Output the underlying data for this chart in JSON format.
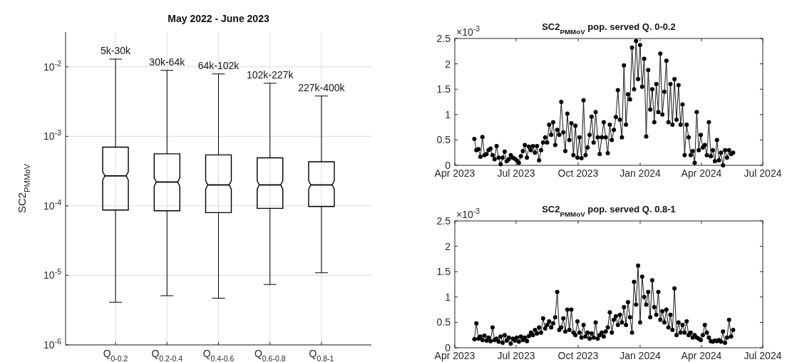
{
  "chart_data": [
    {
      "type": "box",
      "title": "May 2022 - June 2023",
      "ylabel": "SC2$_{PMMoV}$",
      "log": "y",
      "grid": true,
      "categories": [
        "Q$_{0-0.2}$",
        "Q$_{0.2-0.4}$",
        "Q$_{0.4-0.6}$",
        "Q$_{0.6-0.8}$",
        "Q$_{0.8-1}$"
      ],
      "boxes": [
        {
          "low": 4.1e-06,
          "q1": 8.7e-05,
          "median": 0.00027,
          "q3": 0.0007,
          "high": 0.0129
        },
        {
          "low": 5.1e-06,
          "q1": 8.5e-05,
          "median": 0.00022,
          "q3": 0.00056,
          "high": 0.0089
        },
        {
          "low": 4.7e-06,
          "q1": 8e-05,
          "median": 0.0002,
          "q3": 0.00054,
          "high": 0.0079
        },
        {
          "low": 7.4e-06,
          "q1": 9.2e-05,
          "median": 0.0002,
          "q3": 0.00049,
          "high": 0.0058
        },
        {
          "low": 1.09e-05,
          "q1": 9.8e-05,
          "median": 0.0002,
          "q3": 0.00043,
          "high": 0.0038
        }
      ],
      "color": "#000000",
      "ylim": [
        1e-06,
        0.0316
      ],
      "yticks": [
        {
          "value": 1e-06,
          "label": "10$^{-6}$"
        },
        {
          "value": 1e-05,
          "label": "10$^{-5}$"
        },
        {
          "value": 0.0001,
          "label": "10$^{-4}$"
        },
        {
          "value": 0.001,
          "label": "10$^{-3}$"
        },
        {
          "value": 0.01,
          "label": "10$^{-2}$"
        }
      ],
      "annotations": [
        "5k-30k",
        "30k-64k",
        "64k-102k",
        "102k-227k",
        "227k-400k"
      ]
    },
    {
      "type": "line",
      "title": "SC2$_{PMMoV}$ pop. served Q. 0-0.2",
      "marker": "circle",
      "line_style": "solid",
      "x": [
        "2023-04-30",
        "2023-05-03",
        "2023-05-06",
        "2023-05-09",
        "2023-05-12",
        "2023-05-15",
        "2023-05-18",
        "2023-05-21",
        "2023-05-24",
        "2023-05-27",
        "2023-05-30",
        "2023-06-02",
        "2023-06-05",
        "2023-06-08",
        "2023-06-11",
        "2023-06-14",
        "2023-06-17",
        "2023-06-20",
        "2023-06-23",
        "2023-06-26",
        "2023-06-29",
        "2023-07-02",
        "2023-07-05",
        "2023-07-08",
        "2023-07-11",
        "2023-07-14",
        "2023-07-17",
        "2023-07-20",
        "2023-07-23",
        "2023-07-26",
        "2023-07-29",
        "2023-08-01",
        "2023-08-04",
        "2023-08-07",
        "2023-08-10",
        "2023-08-13",
        "2023-08-16",
        "2023-08-19",
        "2023-08-22",
        "2023-08-25",
        "2023-08-28",
        "2023-08-31",
        "2023-09-03",
        "2023-09-06",
        "2023-09-09",
        "2023-09-12",
        "2023-09-15",
        "2023-09-18",
        "2023-09-21",
        "2023-09-24",
        "2023-09-27",
        "2023-09-30",
        "2023-10-03",
        "2023-10-06",
        "2023-10-09",
        "2023-10-12",
        "2023-10-15",
        "2023-10-18",
        "2023-10-21",
        "2023-10-24",
        "2023-10-27",
        "2023-10-30",
        "2023-11-02",
        "2023-11-05",
        "2023-11-08",
        "2023-11-11",
        "2023-11-14",
        "2023-11-17",
        "2023-11-20",
        "2023-11-23",
        "2023-11-26",
        "2023-11-29",
        "2023-12-02",
        "2023-12-05",
        "2023-12-08",
        "2023-12-11",
        "2023-12-14",
        "2023-12-17",
        "2023-12-20",
        "2023-12-23",
        "2023-12-26",
        "2023-12-29",
        "2024-01-01",
        "2024-01-04",
        "2024-01-07",
        "2024-01-10",
        "2024-01-13",
        "2024-01-16",
        "2024-01-19",
        "2024-01-22",
        "2024-01-25",
        "2024-01-28",
        "2024-01-31",
        "2024-02-03",
        "2024-02-06",
        "2024-02-09",
        "2024-02-12",
        "2024-02-15",
        "2024-02-18",
        "2024-02-21",
        "2024-02-24",
        "2024-02-27",
        "2024-03-01",
        "2024-03-04",
        "2024-03-07",
        "2024-03-10",
        "2024-03-13",
        "2024-03-16",
        "2024-03-19",
        "2024-03-22",
        "2024-03-25",
        "2024-03-28",
        "2024-03-31",
        "2024-04-03",
        "2024-04-06",
        "2024-04-09",
        "2024-04-12",
        "2024-04-15",
        "2024-04-18",
        "2024-04-21",
        "2024-04-24",
        "2024-04-27",
        "2024-04-30",
        "2024-05-03",
        "2024-05-06",
        "2024-05-09",
        "2024-05-12",
        "2024-05-15",
        "2024-05-18"
      ],
      "series": [
        {
          "color": "#000000",
          "values": [
            0.52,
            0.3,
            0.32,
            0.17,
            0.56,
            0.2,
            0.22,
            0.3,
            0.33,
            0.2,
            0.12,
            0.38,
            0.15,
            0.02,
            0.15,
            0.27,
            0.08,
            0.12,
            0.2,
            0.15,
            0.13,
            0.1,
            0.05,
            0.18,
            0.28,
            0.4,
            0.15,
            0.37,
            0.3,
            0.38,
            0.25,
            0.38,
            0.1,
            0.3,
            0.45,
            0.55,
            0.45,
            0.8,
            0.6,
            0.85,
            0.4,
            0.7,
            0.6,
            1.25,
            0.65,
            0.28,
            1.02,
            0.5,
            0.83,
            0.2,
            0.78,
            0.15,
            0.55,
            0.14,
            1.28,
            0.2,
            0.35,
            0.6,
            0.96,
            0.45,
            1.05,
            0.55,
            0.22,
            0.55,
            0.85,
            0.55,
            0.24,
            0.8,
            0.5,
            0.7,
            0.95,
            1.48,
            0.9,
            0.55,
            1.97,
            0.8,
            1.4,
            1.3,
            2.32,
            1.5,
            2.45,
            1.7,
            2.37,
            1.55,
            2.1,
            0.57,
            1.88,
            1.1,
            1.5,
            0.85,
            1.6,
            1.05,
            2.2,
            1.0,
            1.45,
            2.06,
            0.85,
            1.6,
            0.8,
            1.7,
            0.9,
            1.58,
            0.8,
            1.2,
            0.2,
            0.8,
            0.55,
            0.2,
            0.28,
            0.05,
            1.05,
            0.3,
            0.6,
            0.35,
            0.4,
            0.2,
            0.85,
            0.18,
            0.3,
            0.08,
            0.5,
            0.1,
            0.25,
            0.0,
            0.3,
            0.15,
            0.3,
            0.22,
            0.25
          ]
        }
      ],
      "xlim": [
        "2023-04-01",
        "2024-07-01"
      ],
      "xticks": [
        {
          "value": "2023-04-01",
          "label": "Apr 2023"
        },
        {
          "value": "2023-07-01",
          "label": "Jul 2023"
        },
        {
          "value": "2023-10-01",
          "label": "Oct 2023"
        },
        {
          "value": "2024-01-01",
          "label": "Jan 2024"
        },
        {
          "value": "2024-04-01",
          "label": "Apr 2024"
        },
        {
          "value": "2024-07-01",
          "label": "Jul 2024"
        }
      ],
      "ylim": [
        0,
        2.5
      ],
      "yticks": [
        0,
        0.5,
        1,
        1.5,
        2,
        2.5
      ],
      "annotations": [
        "×10$^{-3}$"
      ]
    },
    {
      "type": "line",
      "title": "SC2$_{PMMoV}$ pop. served Q. 0.8-1",
      "marker": "circle",
      "line_style": "solid",
      "x": [
        "2023-04-30",
        "2023-05-03",
        "2023-05-06",
        "2023-05-09",
        "2023-05-12",
        "2023-05-15",
        "2023-05-18",
        "2023-05-21",
        "2023-05-24",
        "2023-05-27",
        "2023-05-30",
        "2023-06-02",
        "2023-06-05",
        "2023-06-08",
        "2023-06-11",
        "2023-06-14",
        "2023-06-17",
        "2023-06-20",
        "2023-06-23",
        "2023-06-26",
        "2023-06-29",
        "2023-07-02",
        "2023-07-05",
        "2023-07-08",
        "2023-07-11",
        "2023-07-14",
        "2023-07-17",
        "2023-07-20",
        "2023-07-23",
        "2023-07-26",
        "2023-07-29",
        "2023-08-01",
        "2023-08-04",
        "2023-08-07",
        "2023-08-10",
        "2023-08-13",
        "2023-08-16",
        "2023-08-19",
        "2023-08-22",
        "2023-08-25",
        "2023-08-28",
        "2023-08-31",
        "2023-09-03",
        "2023-09-06",
        "2023-09-09",
        "2023-09-12",
        "2023-09-15",
        "2023-09-18",
        "2023-09-21",
        "2023-09-24",
        "2023-09-27",
        "2023-09-30",
        "2023-10-03",
        "2023-10-06",
        "2023-10-09",
        "2023-10-12",
        "2023-10-15",
        "2023-10-18",
        "2023-10-21",
        "2023-10-24",
        "2023-10-27",
        "2023-10-30",
        "2023-11-02",
        "2023-11-05",
        "2023-11-08",
        "2023-11-11",
        "2023-11-14",
        "2023-11-17",
        "2023-11-20",
        "2023-11-23",
        "2023-11-26",
        "2023-11-29",
        "2023-12-02",
        "2023-12-05",
        "2023-12-08",
        "2023-12-11",
        "2023-12-14",
        "2023-12-17",
        "2023-12-20",
        "2023-12-23",
        "2023-12-26",
        "2023-12-29",
        "2024-01-01",
        "2024-01-04",
        "2024-01-07",
        "2024-01-10",
        "2024-01-13",
        "2024-01-16",
        "2024-01-19",
        "2024-01-22",
        "2024-01-25",
        "2024-01-28",
        "2024-01-31",
        "2024-02-03",
        "2024-02-06",
        "2024-02-09",
        "2024-02-12",
        "2024-02-15",
        "2024-02-18",
        "2024-02-21",
        "2024-02-24",
        "2024-02-27",
        "2024-03-01",
        "2024-03-04",
        "2024-03-07",
        "2024-03-10",
        "2024-03-13",
        "2024-03-16",
        "2024-03-19",
        "2024-03-22",
        "2024-03-25",
        "2024-03-28",
        "2024-03-31",
        "2024-04-03",
        "2024-04-06",
        "2024-04-09",
        "2024-04-12",
        "2024-04-15",
        "2024-04-18",
        "2024-04-21",
        "2024-04-24",
        "2024-04-27",
        "2024-04-30",
        "2024-05-03",
        "2024-05-06",
        "2024-05-09",
        "2024-05-12",
        "2024-05-15",
        "2024-05-18"
      ],
      "series": [
        {
          "color": "#000000",
          "values": [
            0.17,
            0.48,
            0.18,
            0.22,
            0.15,
            0.24,
            0.14,
            0.2,
            0.13,
            0.4,
            0.15,
            0.18,
            0.12,
            0.22,
            0.1,
            0.25,
            0.14,
            0.2,
            0.08,
            0.18,
            0.14,
            0.2,
            0.12,
            0.22,
            0.15,
            0.2,
            0.13,
            0.23,
            0.3,
            0.25,
            0.35,
            0.28,
            0.4,
            0.3,
            0.58,
            0.38,
            0.45,
            0.52,
            0.4,
            0.48,
            0.6,
            1.1,
            0.35,
            0.4,
            0.58,
            0.32,
            0.75,
            0.35,
            0.75,
            0.3,
            0.25,
            0.52,
            0.3,
            0.2,
            0.45,
            0.22,
            0.3,
            0.18,
            0.28,
            0.2,
            0.5,
            0.18,
            0.25,
            0.3,
            0.22,
            0.32,
            0.4,
            0.7,
            0.3,
            0.55,
            0.62,
            0.45,
            0.65,
            0.5,
            0.8,
            0.45,
            0.9,
            0.6,
            0.3,
            1.3,
            0.85,
            1.62,
            0.5,
            1.4,
            1.0,
            0.85,
            1.1,
            0.6,
            1.33,
            0.8,
            0.65,
            1.1,
            0.55,
            0.72,
            0.5,
            0.75,
            0.4,
            0.65,
            0.35,
            1.17,
            0.25,
            0.5,
            0.3,
            0.45,
            0.3,
            0.52,
            0.25,
            0.3,
            0.2,
            0.25,
            0.2,
            0.18,
            0.15,
            0.25,
            0.45,
            0.3,
            0.2,
            0.13,
            0.12,
            0.14,
            0.13,
            0.15,
            0.12,
            0.32,
            0.1,
            0.2,
            0.55,
            0.22,
            0.35
          ]
        }
      ],
      "xlim": [
        "2023-04-01",
        "2024-07-01"
      ],
      "xticks": [
        {
          "value": "2023-04-01",
          "label": "Apr 2023"
        },
        {
          "value": "2023-07-01",
          "label": "Jul 2023"
        },
        {
          "value": "2023-10-01",
          "label": "Oct 2023"
        },
        {
          "value": "2024-01-01",
          "label": "Jan 2024"
        },
        {
          "value": "2024-04-01",
          "label": "Apr 2024"
        },
        {
          "value": "2024-07-01",
          "label": "Jul 2024"
        }
      ],
      "ylim": [
        0,
        2.5
      ],
      "yticks": [
        0,
        0.5,
        1,
        1.5,
        2,
        2.5
      ],
      "annotations": [
        "×10$^{-3}$"
      ]
    }
  ]
}
